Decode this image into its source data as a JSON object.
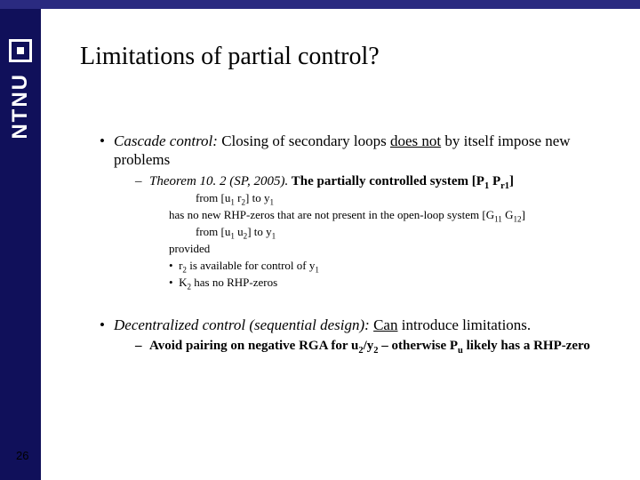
{
  "colors": {
    "topbar": "#2a2a80",
    "sidebar": "#10105a",
    "sidebar_text": "#ffffff",
    "body_text": "#000000",
    "background": "#ffffff"
  },
  "typography": {
    "title_fontsize_pt": 28,
    "l1_fontsize_pt": 17,
    "l2_fontsize_pt": 15,
    "l3_fontsize_pt": 13,
    "font_family": "Times New Roman"
  },
  "sidebar": {
    "brand": "NTNU",
    "logo_name": "square-target-icon"
  },
  "page_number": "26",
  "title": "Limitations of partial control?",
  "bullets": {
    "b1": {
      "lead": "Cascade control:",
      "rest_a": " Closing of secondary loops ",
      "underlined": "does not",
      "rest_b": " by itself impose new problems"
    },
    "b1_sub": {
      "lead": "Theorem 10. 2 (SP, 2005).",
      "rest": " The partially controlled system  [P",
      "sub1": "1",
      "rest2": " P",
      "sub2": "r1",
      "rest3": "]"
    },
    "l3a": {
      "pre": "from [u",
      "s1": "1",
      "mid": " r",
      "s2": "2",
      "post": "] to y",
      "s3": "1"
    },
    "l3b": {
      "pre": "has no new RHP-zeros that are not present in the open-loop system  [G",
      "s1": "11",
      "mid": "  G",
      "s2": "12",
      "post": "]"
    },
    "l3c": {
      "pre": "from [u",
      "s1": "1",
      "mid": " u",
      "s2": "2",
      "post": "] to y",
      "s3": "1"
    },
    "l3d": "provided",
    "l3e": {
      "pre": "r",
      "s1": "2",
      "post": " is available for control of y",
      "s2": "1"
    },
    "l3f": {
      "pre": "K",
      "s1": "2",
      "post": " has no RHP-zeros"
    },
    "b2": {
      "lead": "Decentralized control (sequential design):",
      "underlined": "Can",
      "rest": " introduce limitations."
    },
    "b2_sub": {
      "pre": "Avoid pairing on negative RGA for u",
      "s1": "2",
      "mid": "/y",
      "s2": "2",
      "post": " – otherwise P",
      "s3": "u",
      "tail": " likely has a RHP-zero"
    }
  }
}
